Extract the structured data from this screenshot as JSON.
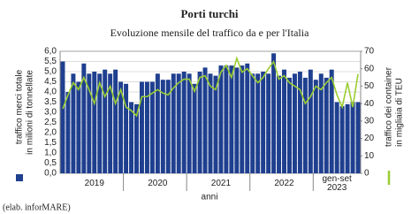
{
  "chart_data": {
    "type": "bar_line",
    "title": "Porti turchi",
    "subtitle": "Evoluzione mensile del traffico da e per l'Italia",
    "xlabel": "anni",
    "ylabel": "in milioni di tonnellate",
    "y2label": "in migliaia di TEU",
    "annotation": "(elab. inforMARE)",
    "categories": [
      null,
      null,
      null,
      null,
      null,
      null,
      "2019",
      null,
      null,
      null,
      null,
      null,
      null,
      null,
      null,
      null,
      null,
      null,
      "2020",
      null,
      null,
      null,
      null,
      null,
      null,
      null,
      null,
      null,
      null,
      null,
      "2021",
      null,
      null,
      null,
      null,
      null,
      null,
      null,
      null,
      null,
      null,
      null,
      "2022",
      null,
      null,
      null,
      null,
      null,
      null,
      null,
      null,
      null,
      "gen-set 2023",
      null,
      null,
      null,
      null
    ],
    "series": [
      {
        "name": "traffico merci totale",
        "color": "#1f3f8f",
        "axis": "y",
        "values": [
          5.5,
          4.0,
          4.9,
          4.5,
          5.4,
          4.9,
          5.0,
          4.9,
          5.1,
          4.9,
          5.1,
          4.5,
          4.4,
          3.5,
          3.4,
          4.5,
          4.5,
          4.5,
          4.9,
          4.6,
          4.6,
          4.9,
          4.9,
          5.0,
          4.9,
          4.4,
          5.0,
          5.2,
          4.9,
          4.8,
          5.3,
          5.3,
          5.3,
          5.2,
          5.3,
          5.4,
          4.9,
          4.9,
          5.0,
          4.9,
          5.9,
          4.8,
          5.1,
          4.7,
          4.9,
          5.0,
          4.7,
          5.1,
          4.6,
          4.9,
          4.7,
          5.1,
          3.5,
          3.3,
          3.4,
          3.5,
          3.5
        ]
      },
      {
        "name": "traffico dei container",
        "color": "#9acd32",
        "axis": "y2",
        "values": [
          37,
          45,
          52,
          48,
          55,
          48,
          40,
          52,
          44,
          50,
          40,
          48,
          38,
          36,
          33,
          44,
          44,
          46,
          48,
          46,
          45,
          49,
          52,
          54,
          54,
          47,
          55,
          56,
          50,
          48,
          58,
          62,
          55,
          66,
          58,
          60,
          56,
          52,
          55,
          60,
          64,
          54,
          56,
          52,
          50,
          48,
          40,
          44,
          50,
          48,
          52,
          55,
          45,
          38,
          52,
          38,
          57
        ]
      }
    ],
    "ylim": [
      0,
      6
    ],
    "yticks": [
      {
        "value": 0,
        "label": "0,0"
      },
      {
        "value": 0.5,
        "label": "0,5"
      },
      {
        "value": 1,
        "label": "1,0"
      },
      {
        "value": 1.5,
        "label": "1,5"
      },
      {
        "value": 2,
        "label": "2,0"
      },
      {
        "value": 2.5,
        "label": "2,5"
      },
      {
        "value": 3,
        "label": "3,0"
      },
      {
        "value": 3.5,
        "label": "3,5"
      },
      {
        "value": 4,
        "label": "4,0"
      },
      {
        "value": 4.5,
        "label": "4,5"
      },
      {
        "value": 5,
        "label": "5,0"
      },
      {
        "value": 5.5,
        "label": "5,5"
      },
      {
        "value": 6,
        "label": "6,0"
      }
    ],
    "y2lim": [
      0,
      70
    ],
    "y2ticks": [
      0,
      10,
      20,
      30,
      40,
      50,
      60,
      70
    ],
    "grid": true
  }
}
